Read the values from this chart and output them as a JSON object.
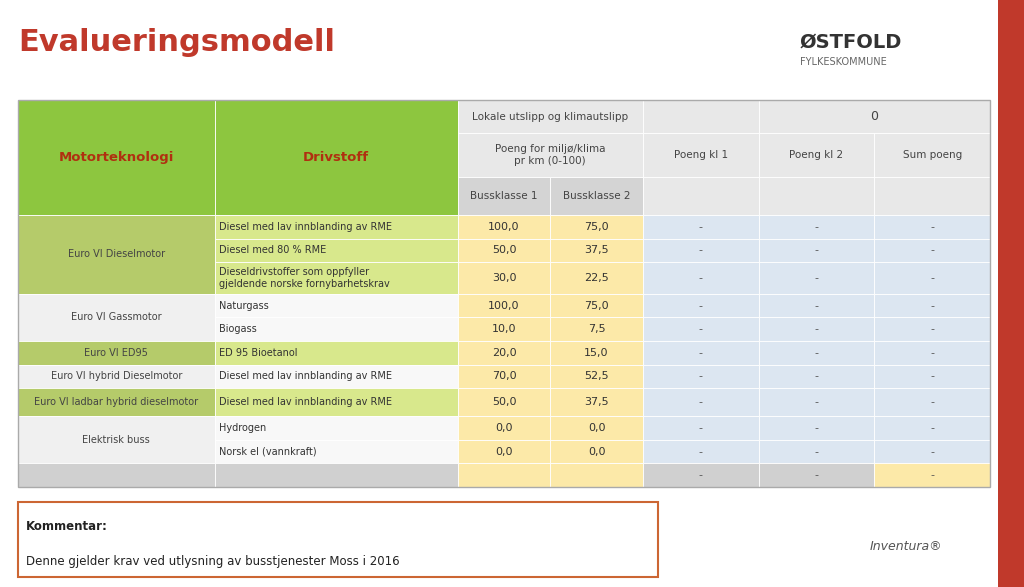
{
  "title": "Evalueringsmodell",
  "title_color": "#c0392b",
  "background_color": "#f0f0f0",
  "right_bar_color": "#c0392b",
  "header_bg_green": "#8dc63f",
  "span_header1": "Lokale utslipp og klimautslipp",
  "span_header2": "Poeng for miljø/klima\npr km (0-100)",
  "span_val": "0",
  "col_header_bg": "#dce6f1",
  "bk_col_bg_yellow": "#fce8a0",
  "bk_col_bg_yellow2": "#fce8a0",
  "right_cols_bg": "#dce6f1",
  "motor_green_dark": "#b5cb6a",
  "motor_white": "#f0f0f0",
  "fuel_green": "#d4e88a",
  "fuel_white": "#f8f8f8",
  "last_row_left_bg": "#d8d8d8",
  "last_row_bk_bg": "#fce8a0",
  "last_row_sum_bg": "#fce8a0",
  "rows": [
    {
      "motor": "Euro VI Dieselmotor",
      "fuel": "Diesel med lav innblanding av RME",
      "bk1": "100,0",
      "bk2": "75,0",
      "pk1": "-",
      "pk2": "-",
      "sum": "-",
      "group": 0
    },
    {
      "motor": "",
      "fuel": "Diesel med 80 % RME",
      "bk1": "50,0",
      "bk2": "37,5",
      "pk1": "-",
      "pk2": "-",
      "sum": "-",
      "group": 0
    },
    {
      "motor": "",
      "fuel": "Dieseldrivstoffer som oppfyller\ngjeldende norske fornybarhetskrav",
      "bk1": "30,0",
      "bk2": "22,5",
      "pk1": "-",
      "pk2": "-",
      "sum": "-",
      "group": 0
    },
    {
      "motor": "Euro VI Gassmotor",
      "fuel": "Naturgass",
      "bk1": "100,0",
      "bk2": "75,0",
      "pk1": "-",
      "pk2": "-",
      "sum": "-",
      "group": 1
    },
    {
      "motor": "",
      "fuel": "Biogass",
      "bk1": "10,0",
      "bk2": "7,5",
      "pk1": "-",
      "pk2": "-",
      "sum": "-",
      "group": 1
    },
    {
      "motor": "Euro VI ED95",
      "fuel": "ED 95 Bioetanol",
      "bk1": "20,0",
      "bk2": "15,0",
      "pk1": "-",
      "pk2": "-",
      "sum": "-",
      "group": 0
    },
    {
      "motor": "Euro VI hybrid Dieselmotor",
      "fuel": "Diesel med lav innblanding av RME",
      "bk1": "70,0",
      "bk2": "52,5",
      "pk1": "-",
      "pk2": "-",
      "sum": "-",
      "group": 1
    },
    {
      "motor": "Euro VI ladbar hybrid dieselmotor",
      "fuel": "Diesel med lav innblanding av RME",
      "bk1": "50,0",
      "bk2": "37,5",
      "pk1": "-",
      "pk2": "-",
      "sum": "-",
      "group": 0
    },
    {
      "motor": "Elektrisk buss",
      "fuel": "Hydrogen",
      "bk1": "0,0",
      "bk2": "0,0",
      "pk1": "-",
      "pk2": "-",
      "sum": "-",
      "group": 1
    },
    {
      "motor": "",
      "fuel": "Norsk el (vannkraft)",
      "bk1": "0,0",
      "bk2": "0,0",
      "pk1": "-",
      "pk2": "-",
      "sum": "-",
      "group": 1
    },
    {
      "motor": "",
      "fuel": "",
      "bk1": "",
      "bk2": "",
      "pk1": "-",
      "pk2": "-",
      "sum": "-",
      "group": 2
    }
  ],
  "motor_groups": [
    [
      0,
      2,
      "Euro VI Dieselmotor",
      0
    ],
    [
      3,
      4,
      "Euro VI Gassmotor",
      1
    ],
    [
      5,
      5,
      "Euro VI ED95",
      0
    ],
    [
      6,
      6,
      "Euro VI hybrid Dieselmotor",
      1
    ],
    [
      7,
      7,
      "Euro VI ladbar hybrid dieselmotor",
      0
    ],
    [
      8,
      9,
      "Elektrisk buss",
      1
    ],
    [
      10,
      10,
      "",
      2
    ]
  ],
  "comment_bold": "Kommentar:",
  "comment_text": "Denne gjelder krav ved utlysning av busstjenester Moss i 2016",
  "inventura_text": "Inventura®"
}
